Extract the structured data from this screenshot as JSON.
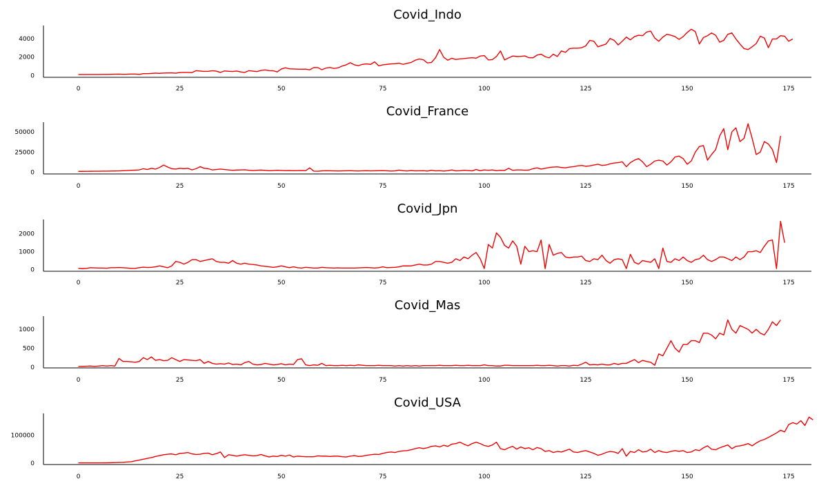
{
  "chart_data": [
    {
      "type": "line",
      "title": "Covid_Indo",
      "xlim": [
        -8.6,
        180.6
      ],
      "ylim": [
        -200,
        5400
      ],
      "xticks": [
        0,
        25,
        50,
        75,
        100,
        125,
        150,
        175
      ],
      "yticks": [
        0,
        2000,
        4000
      ],
      "grid": false,
      "color": "#ee0000",
      "series": [
        {
          "x_start": 0,
          "values": [
            100,
            100,
            100,
            100,
            100,
            100,
            110,
            110,
            120,
            130,
            140,
            120,
            130,
            150,
            150,
            110,
            200,
            200,
            220,
            250,
            230,
            260,
            270,
            280,
            240,
            320,
            330,
            330,
            310,
            520,
            480,
            440,
            450,
            510,
            470,
            330,
            490,
            450,
            430,
            480,
            380,
            330,
            520,
            470,
            420,
            540,
            600,
            520,
            510,
            380,
            700,
            830,
            720,
            700,
            680,
            670,
            680,
            610,
            860,
            850,
            620,
            800,
            860,
            760,
            830,
            1020,
            1150,
            1380,
            1150,
            1060,
            1200,
            1250,
            1200,
            1470,
            1040,
            1150,
            1200,
            1250,
            1270,
            1330,
            1200,
            1310,
            1410,
            1650,
            1780,
            1700,
            1350,
            1410,
            1920,
            2800,
            1970,
            1650,
            1860,
            1730,
            1790,
            1830,
            1880,
            1920,
            1870,
            2100,
            2150,
            1680,
            1720,
            2050,
            2650,
            1680,
            1900,
            2100,
            2050,
            2060,
            2110,
            1920,
            1910,
            2200,
            2300,
            2030,
            1900,
            2300,
            2050,
            2650,
            2500,
            2900,
            2950,
            2950,
            3000,
            3200,
            3800,
            3700,
            3100,
            3250,
            3400,
            4000,
            3800,
            3300,
            3700,
            4150,
            3850,
            4200,
            4350,
            4300,
            4700,
            4800,
            4050,
            3700,
            4150,
            4450,
            4350,
            4200,
            3900,
            4200,
            4650,
            5000,
            4750,
            3400,
            4100,
            4300,
            4600,
            4350,
            3600,
            3800,
            4450,
            4600,
            3950,
            3400,
            2900,
            2800,
            3100,
            3450,
            4250,
            4050,
            3000,
            3950,
            3950,
            4300,
            4250,
            3700,
            3950
          ]
        }
      ]
    },
    {
      "type": "line",
      "title": "Covid_France",
      "xlim": [
        -8.6,
        180.6
      ],
      "ylim": [
        -2000,
        62000
      ],
      "xticks": [
        0,
        25,
        50,
        75,
        100,
        125,
        150,
        175
      ],
      "yticks": [
        0,
        25000,
        50000
      ],
      "grid": false,
      "color": "#ee0000",
      "series": [
        {
          "x_start": 0,
          "values": [
            1200,
            1200,
            1250,
            1300,
            1350,
            1400,
            1450,
            1500,
            1600,
            1700,
            1800,
            2000,
            2200,
            2500,
            2700,
            3000,
            4500,
            3500,
            5000,
            4000,
            6000,
            9000,
            6500,
            4500,
            4000,
            5000,
            4500,
            5000,
            3000,
            4500,
            7000,
            5000,
            4500,
            3000,
            3500,
            4000,
            3500,
            3000,
            2500,
            2800,
            3000,
            3200,
            2500,
            2200,
            2500,
            2800,
            2400,
            2000,
            2200,
            2500,
            2300,
            2100,
            2200,
            2000,
            2100,
            2200,
            2000,
            5500,
            1500,
            1400,
            1800,
            2000,
            1900,
            1800,
            1700,
            1800,
            1900,
            2000,
            1800,
            1700,
            1900,
            2000,
            1800,
            1900,
            2000,
            2100,
            1900,
            1600,
            1800,
            2800,
            2000,
            1700,
            2200,
            1800,
            1900,
            2000,
            1600,
            2500,
            1800,
            2000,
            1600,
            2000,
            3000,
            1800,
            2000,
            2500,
            2200,
            1800,
            3500,
            2000,
            3000,
            2500,
            3000,
            2000,
            2500,
            2300,
            5000,
            2500,
            3000,
            3000,
            2600,
            2800,
            4500,
            5500,
            4000,
            5000,
            6000,
            6500,
            6800,
            6000,
            5500,
            6500,
            7000,
            8000,
            8500,
            7500,
            8000,
            9000,
            10000,
            8500,
            9000,
            10500,
            11500,
            12000,
            13000,
            7000,
            12000,
            15000,
            17000,
            13000,
            7000,
            10000,
            14000,
            15000,
            14000,
            9000,
            13000,
            19000,
            20000,
            17000,
            10000,
            14000,
            25000,
            32000,
            33000,
            15000,
            22000,
            28000,
            45000,
            54000,
            28000,
            50000,
            55000,
            38000,
            42000,
            60000,
            42000,
            22000,
            25000,
            38000,
            35000,
            28000,
            12000,
            45000
          ]
        }
      ]
    },
    {
      "type": "line",
      "title": "Covid_Jpn",
      "xlim": [
        -8.6,
        180.6
      ],
      "ylim": [
        -100,
        2800
      ],
      "xticks": [
        0,
        25,
        50,
        75,
        100,
        125,
        150,
        175
      ],
      "yticks": [
        0,
        1000,
        2000
      ],
      "grid": false,
      "color": "#ee0000",
      "series": [
        {
          "x_start": 0,
          "values": [
            60,
            50,
            60,
            100,
            90,
            80,
            80,
            70,
            100,
            100,
            110,
            100,
            80,
            60,
            60,
            100,
            130,
            110,
            120,
            150,
            200,
            150,
            100,
            200,
            450,
            400,
            300,
            400,
            550,
            550,
            450,
            500,
            550,
            600,
            450,
            400,
            400,
            350,
            500,
            350,
            300,
            350,
            300,
            280,
            250,
            200,
            180,
            150,
            120,
            150,
            200,
            150,
            100,
            150,
            100,
            80,
            120,
            100,
            80,
            80,
            120,
            100,
            90,
            80,
            90,
            80,
            80,
            80,
            80,
            90,
            100,
            110,
            100,
            80,
            100,
            150,
            100,
            110,
            120,
            150,
            200,
            200,
            200,
            250,
            300,
            250,
            250,
            300,
            450,
            450,
            400,
            350,
            400,
            600,
            500,
            700,
            600,
            800,
            950,
            600,
            50,
            1400,
            1200,
            2050,
            1800,
            1350,
            1200,
            1600,
            1300,
            300,
            1300,
            1000,
            1050,
            1000,
            1650,
            50,
            1400,
            800,
            900,
            950,
            700,
            650,
            700,
            700,
            750,
            500,
            450,
            600,
            550,
            800,
            500,
            350,
            550,
            600,
            550,
            50,
            850,
            400,
            300,
            500,
            450,
            400,
            600,
            50,
            1200,
            450,
            400,
            600,
            500,
            700,
            500,
            400,
            550,
            600,
            800,
            550,
            450,
            550,
            700,
            700,
            600,
            500,
            700,
            550,
            700,
            1000,
            1000,
            1050,
            950,
            1300,
            1600,
            1650,
            50,
            2700,
            1500
          ]
        }
      ]
    },
    {
      "type": "line",
      "title": "Covid_Mas",
      "xlim": [
        -8.6,
        180.6
      ],
      "ylim": [
        -20,
        1350
      ],
      "xticks": [
        0,
        25,
        50,
        75,
        100,
        125,
        150,
        175
      ],
      "yticks": [
        0,
        500,
        1000
      ],
      "grid": false,
      "color": "#ee0000",
      "series": [
        {
          "x_start": 0,
          "values": [
            20,
            20,
            25,
            30,
            20,
            30,
            40,
            30,
            40,
            30,
            230,
            150,
            150,
            140,
            130,
            150,
            250,
            200,
            270,
            180,
            200,
            170,
            180,
            250,
            200,
            150,
            200,
            190,
            180,
            170,
            200,
            100,
            150,
            100,
            80,
            90,
            80,
            110,
            70,
            80,
            60,
            120,
            150,
            80,
            60,
            70,
            100,
            80,
            60,
            70,
            90,
            60,
            80,
            70,
            200,
            220,
            60,
            40,
            60,
            50,
            100,
            40,
            50,
            40,
            40,
            50,
            40,
            50,
            40,
            60,
            50,
            40,
            40,
            40,
            50,
            40,
            40,
            40,
            30,
            40,
            30,
            40,
            30,
            40,
            30,
            40,
            40,
            40,
            40,
            50,
            40,
            40,
            40,
            50,
            40,
            40,
            50,
            40,
            40,
            40,
            60,
            40,
            40,
            30,
            30,
            50,
            50,
            40,
            40,
            40,
            40,
            40,
            40,
            50,
            40,
            40,
            50,
            40,
            30,
            40,
            40,
            30,
            50,
            40,
            80,
            130,
            60,
            70,
            60,
            80,
            60,
            60,
            100,
            70,
            100,
            100,
            150,
            200,
            120,
            180,
            150,
            130,
            50,
            350,
            300,
            500,
            700,
            500,
            400,
            600,
            600,
            700,
            700,
            650,
            900,
            900,
            850,
            750,
            900,
            850,
            1250,
            1000,
            900,
            1100,
            1050,
            1000,
            900,
            1000,
            900,
            850,
            1000,
            1200,
            1100,
            1250
          ]
        }
      ]
    },
    {
      "type": "line",
      "title": "Covid_USA",
      "xlim": [
        -8.6,
        180.6
      ],
      "ylim": [
        -5000,
        178000
      ],
      "xticks": [
        0,
        25,
        50,
        75,
        100,
        125,
        150,
        175
      ],
      "yticks": [
        0,
        100000
      ],
      "grid": false,
      "color": "#ee0000",
      "series": [
        {
          "x_start": 0,
          "values": [
            1000,
            1000,
            1000,
            1000,
            1000,
            1000,
            1000,
            1200,
            1500,
            2000,
            2500,
            3000,
            4000,
            5000,
            8000,
            11000,
            14000,
            17000,
            20000,
            24000,
            27000,
            30000,
            32000,
            33000,
            30000,
            35000,
            36000,
            38000,
            33000,
            31000,
            32000,
            35000,
            36000,
            30000,
            34000,
            40000,
            20000,
            30000,
            28000,
            25000,
            28000,
            30000,
            28000,
            26000,
            27000,
            31000,
            26000,
            22000,
            25000,
            24000,
            28000,
            25000,
            29000,
            22000,
            25000,
            24000,
            23000,
            23000,
            23000,
            26000,
            25000,
            25000,
            24000,
            25000,
            25000,
            23000,
            22000,
            25000,
            27000,
            24000,
            25000,
            28000,
            30000,
            32000,
            31000,
            35000,
            38000,
            40000,
            38000,
            42000,
            44000,
            45000,
            48000,
            52000,
            55000,
            52000,
            55000,
            60000,
            62000,
            58000,
            64000,
            60000,
            68000,
            70000,
            75000,
            68000,
            62000,
            70000,
            75000,
            70000,
            63000,
            60000,
            65000,
            75000,
            52000,
            48000,
            55000,
            60000,
            50000,
            58000,
            52000,
            55000,
            48000,
            56000,
            52000,
            42000,
            45000,
            38000,
            42000,
            40000,
            45000,
            50000,
            40000,
            38000,
            42000,
            45000,
            40000,
            35000,
            28000,
            32000,
            38000,
            42000,
            40000,
            35000,
            52000,
            25000,
            42000,
            38000,
            48000,
            40000,
            42000,
            50000,
            38000,
            45000,
            40000,
            38000,
            42000,
            45000,
            42000,
            45000,
            38000,
            40000,
            48000,
            45000,
            55000,
            62000,
            50000,
            48000,
            55000,
            60000,
            65000,
            52000,
            60000,
            62000,
            65000,
            70000,
            62000,
            72000,
            80000,
            85000,
            92000,
            100000,
            108000,
            118000,
            112000,
            138000,
            145000,
            140000,
            152000,
            135000,
            165000,
            155000
          ]
        }
      ]
    }
  ]
}
